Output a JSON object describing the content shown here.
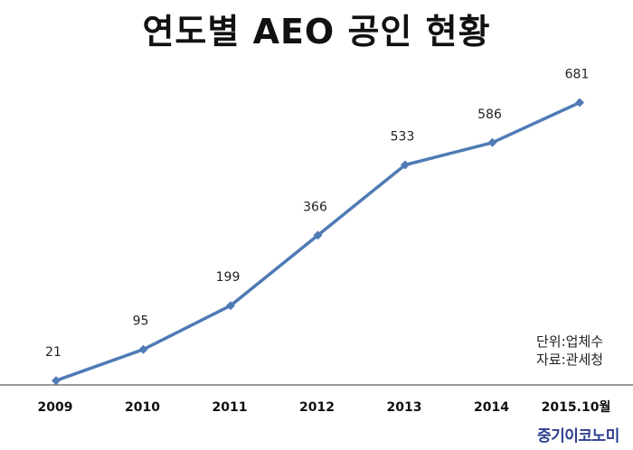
{
  "title": "연도별 AEO 공인 현황",
  "unit_note": "단위:업체수",
  "source_note": "자료:관세청",
  "logo": "중기이코노미",
  "colors": {
    "line": "#4f7bb5",
    "axis": "#333333",
    "logo": "#2d3f8f"
  },
  "chart_data": {
    "type": "line",
    "categories": [
      "2009",
      "2010",
      "2011",
      "2012",
      "2013",
      "2014",
      "2015.10월"
    ],
    "values": [
      21,
      95,
      199,
      366,
      533,
      586,
      681
    ],
    "title": "연도별 AEO 공인 현황",
    "xlabel": "",
    "ylabel": "",
    "ylim": [
      0,
      770
    ],
    "grid": false,
    "legend": "none",
    "marker": "diamond"
  }
}
